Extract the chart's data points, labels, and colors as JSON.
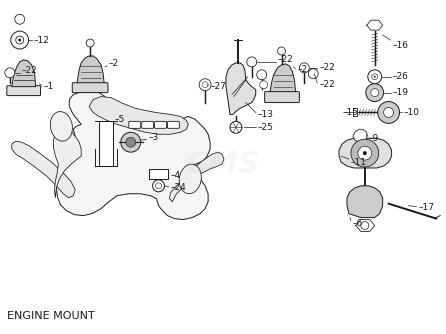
{
  "title": "ENGINE MOUNT",
  "background_color": "#ffffff",
  "text_color": "#1a1a1a",
  "fig_width": 4.46,
  "fig_height": 3.34,
  "dpi": 100,
  "label_fontsize": 6.5,
  "title_fontsize": 8,
  "watermark_text": "CMS",
  "watermark_alpha": 0.1
}
